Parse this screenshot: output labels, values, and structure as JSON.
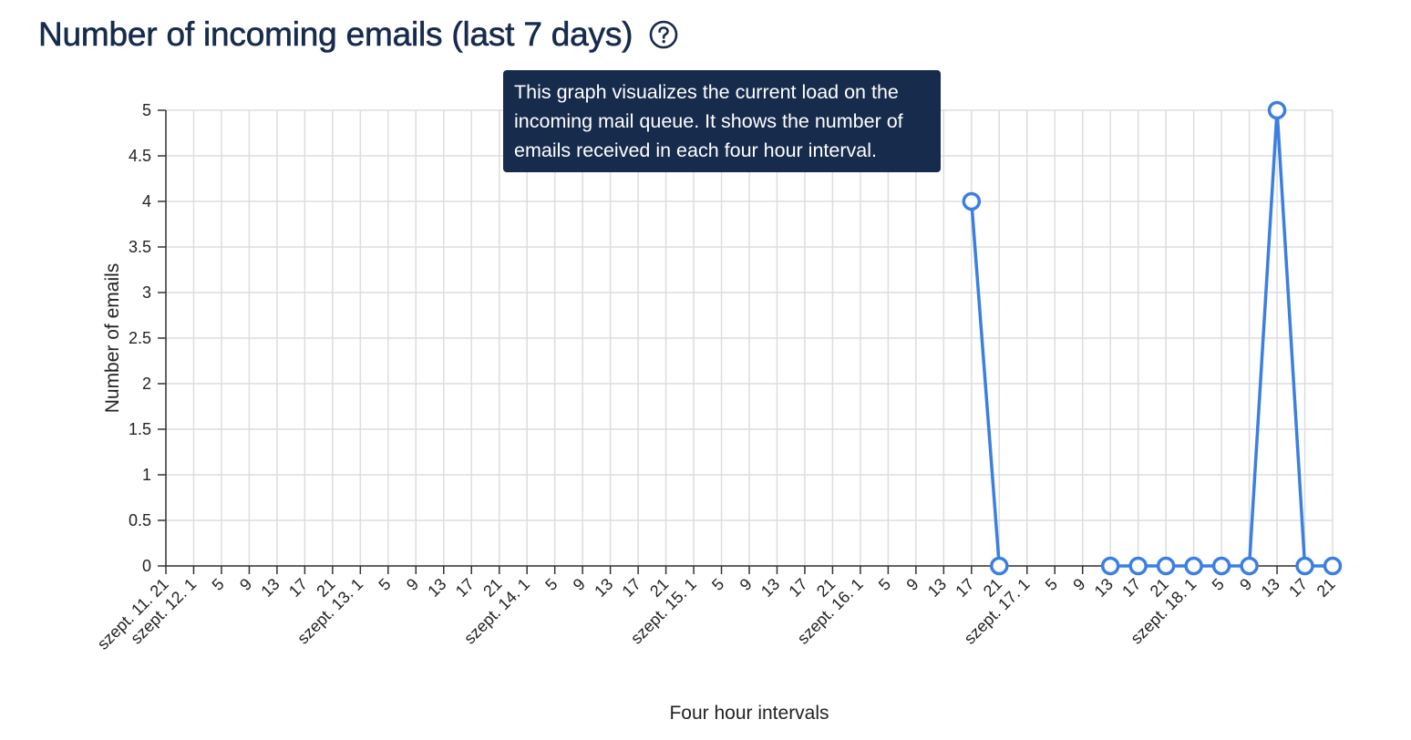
{
  "header": {
    "title": "Number of incoming emails (last 7 days)",
    "help_icon": "question-circle-icon"
  },
  "tooltip": {
    "text": "This graph visualizes the current load on the incoming mail queue. It shows the number of emails received in each four hour interval."
  },
  "colors": {
    "series": "#3b7fe0",
    "title": "#172b4d",
    "tooltip_bg": "#172b4d",
    "grid": "#dddddd"
  },
  "chart_data": {
    "type": "line",
    "xlabel": "Four hour intervals",
    "ylabel": "Number of emails",
    "ylim": [
      0,
      5
    ],
    "yticks": [
      "0",
      "0.5",
      "1",
      "1.5",
      "2",
      "2.5",
      "3",
      "3.5",
      "4",
      "4.5",
      "5"
    ],
    "grid": true,
    "categories": [
      "szept. 11. 21",
      "szept. 12. 1",
      "5",
      "9",
      "13",
      "17",
      "21",
      "szept. 13. 1",
      "5",
      "9",
      "13",
      "17",
      "21",
      "szept. 14. 1",
      "5",
      "9",
      "13",
      "17",
      "21",
      "szept. 15. 1",
      "5",
      "9",
      "13",
      "17",
      "21",
      "szept. 16. 1",
      "5",
      "9",
      "13",
      "17",
      "21",
      "szept. 17. 1",
      "5",
      "9",
      "13",
      "17",
      "21",
      "szept. 18. 1",
      "5",
      "9",
      "13",
      "17",
      "21"
    ],
    "series": [
      {
        "points": [
          {
            "x": "17",
            "x_index": 29,
            "y": 4
          },
          {
            "x": "21",
            "x_index": 30,
            "y": 0
          },
          {
            "x": "13",
            "x_index": 34,
            "y": 0
          },
          {
            "x": "17",
            "x_index": 35,
            "y": 0
          },
          {
            "x": "21",
            "x_index": 36,
            "y": 0
          },
          {
            "x": "szept. 18. 1",
            "x_index": 37,
            "y": 0
          },
          {
            "x": "5",
            "x_index": 38,
            "y": 0
          },
          {
            "x": "9",
            "x_index": 39,
            "y": 0
          },
          {
            "x": "13",
            "x_index": 40,
            "y": 5
          },
          {
            "x": "17",
            "x_index": 41,
            "y": 0
          },
          {
            "x": "21",
            "x_index": 42,
            "y": 0
          }
        ]
      }
    ]
  }
}
